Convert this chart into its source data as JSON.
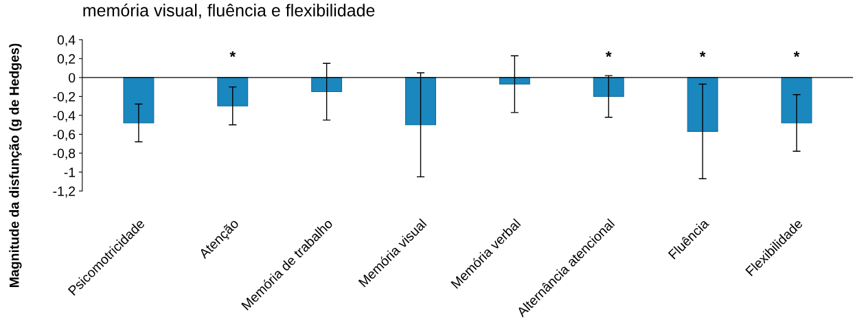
{
  "chart_data": {
    "type": "bar",
    "title": "memória visual, fluência e flexibilidade",
    "ylabel": "Magnitude da disfunção (g de Hedges)",
    "categories": [
      "Psicomotricidade",
      "Atenção",
      "Memória de trabalho",
      "Memória visual",
      "Memória verbal",
      "Alternância atencional",
      "Fluência",
      "Flexibilidade"
    ],
    "values": [
      -0.48,
      -0.3,
      -0.15,
      -0.5,
      -0.07,
      -0.2,
      -0.57,
      -0.48
    ],
    "errors": [
      0.2,
      0.2,
      0.3,
      0.55,
      0.3,
      0.22,
      0.5,
      0.3
    ],
    "color": "#1a87bf",
    "ylim": [
      -1.2,
      0.4
    ],
    "yticks": [
      {
        "value": 0.4,
        "label": "0,4"
      },
      {
        "value": 0.2,
        "label": "0,2"
      },
      0,
      {
        "value": -0.2,
        "label": "-0,2"
      },
      {
        "value": -0.4,
        "label": "-0,4"
      },
      {
        "value": -0.6,
        "label": "-0,6"
      },
      {
        "value": -0.8,
        "label": "-0,8"
      },
      -1,
      {
        "value": -1.2,
        "label": "-1,2"
      }
    ],
    "grid": false,
    "ref_lines": [
      {
        "axis": "y",
        "value": 0,
        "color": "#000000"
      }
    ],
    "value_labels": [
      null,
      "*",
      null,
      null,
      null,
      "*",
      "*",
      "*"
    ]
  }
}
